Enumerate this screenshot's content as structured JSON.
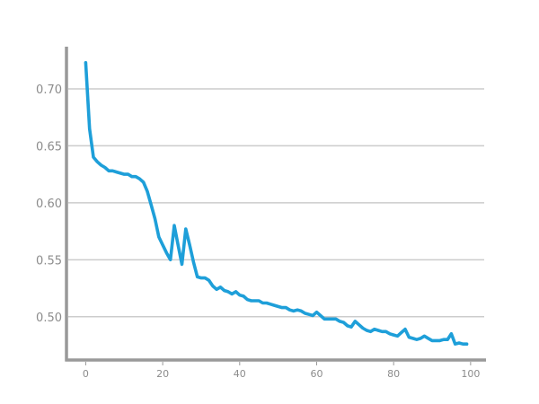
{
  "chart_data": {
    "type": "line",
    "title": "",
    "xlabel": "",
    "ylabel": "",
    "xlim": [
      -5,
      104
    ],
    "ylim": [
      0.462,
      0.737
    ],
    "grid": "horizontal",
    "legend": "none",
    "colors": {
      "line": "#1e9fd9",
      "grid": "#cccccc",
      "axis": "#999999",
      "tick_text": "#8c8c8c"
    },
    "x_ticks": [
      0,
      20,
      40,
      60,
      80,
      100
    ],
    "x_tick_labels": [
      "0",
      "20",
      "40",
      "60",
      "80",
      "100"
    ],
    "y_ticks": [
      0.5,
      0.55,
      0.6,
      0.65,
      0.7
    ],
    "y_tick_labels": [
      "0.50",
      "0.55",
      "0.60",
      "0.65",
      "0.70"
    ],
    "series": [
      {
        "x": [
          0,
          1,
          2,
          3,
          4,
          5,
          6,
          7,
          8,
          9,
          10,
          11,
          12,
          13,
          14,
          15,
          16,
          17,
          18,
          19,
          20,
          21,
          22,
          23,
          24,
          25,
          26,
          27,
          28,
          29,
          30,
          31,
          32,
          33,
          34,
          35,
          36,
          37,
          38,
          39,
          40,
          41,
          42,
          43,
          44,
          45,
          46,
          47,
          48,
          49,
          50,
          51,
          52,
          53,
          54,
          55,
          56,
          57,
          58,
          59,
          60,
          61,
          62,
          63,
          64,
          65,
          66,
          67,
          68,
          69,
          70,
          71,
          72,
          73,
          74,
          75,
          76,
          77,
          78,
          79,
          80,
          81,
          82,
          83,
          84,
          85,
          86,
          87,
          88,
          89,
          90,
          91,
          92,
          93,
          94,
          95,
          96,
          97,
          98,
          99
        ],
        "values": [
          0.723,
          0.665,
          0.64,
          0.636,
          0.633,
          0.631,
          0.628,
          0.628,
          0.627,
          0.626,
          0.625,
          0.625,
          0.623,
          0.623,
          0.621,
          0.618,
          0.61,
          0.598,
          0.586,
          0.57,
          0.563,
          0.556,
          0.55,
          0.58,
          0.563,
          0.546,
          0.577,
          0.563,
          0.548,
          0.535,
          0.534,
          0.534,
          0.532,
          0.527,
          0.524,
          0.526,
          0.523,
          0.522,
          0.52,
          0.522,
          0.519,
          0.518,
          0.515,
          0.514,
          0.514,
          0.514,
          0.512,
          0.512,
          0.511,
          0.51,
          0.509,
          0.508,
          0.508,
          0.506,
          0.505,
          0.506,
          0.505,
          0.503,
          0.502,
          0.501,
          0.504,
          0.501,
          0.498,
          0.498,
          0.498,
          0.498,
          0.496,
          0.495,
          0.492,
          0.491,
          0.496,
          0.493,
          0.49,
          0.488,
          0.487,
          0.489,
          0.488,
          0.487,
          0.487,
          0.485,
          0.484,
          0.483,
          0.486,
          0.489,
          0.482,
          0.481,
          0.48,
          0.481,
          0.483,
          0.481,
          0.479,
          0.479,
          0.479,
          0.48,
          0.48,
          0.485,
          0.476,
          0.477,
          0.476,
          0.476
        ]
      }
    ]
  }
}
